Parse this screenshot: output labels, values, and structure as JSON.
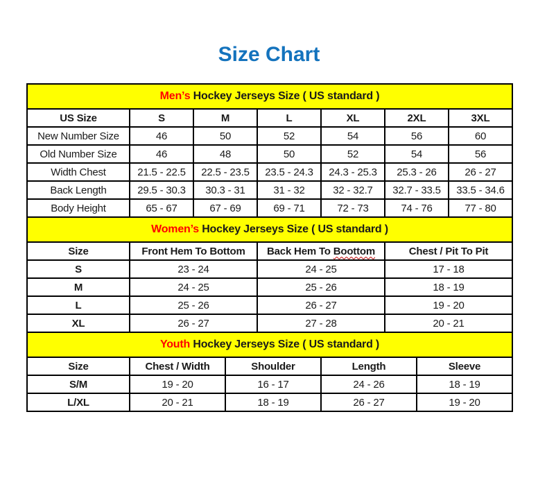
{
  "page": {
    "title": "Size Chart"
  },
  "colors": {
    "title_blue": "#1473BD",
    "band_yellow": "#FFFF00",
    "accent_red": "#FF0000",
    "text_black": "#1A1A1A",
    "border_black": "#000000",
    "background": "#FFFFFF"
  },
  "chart_data": [
    {
      "type": "table",
      "section": "men",
      "header": {
        "accent": "Men’s",
        "rest": "Hockey Jerseys Size ( US standard )"
      },
      "columns": [
        "US Size",
        "S",
        "M",
        "L",
        "XL",
        "2XL",
        "3XL"
      ],
      "rows": [
        [
          "New Number Size",
          "46",
          "50",
          "52",
          "54",
          "56",
          "60"
        ],
        [
          "Old Number Size",
          "46",
          "48",
          "50",
          "52",
          "54",
          "56"
        ],
        [
          "Width Chest",
          "21.5 - 22.5",
          "22.5 - 23.5",
          "23.5 - 24.3",
          "24.3 - 25.3",
          "25.3 - 26",
          "26 - 27"
        ],
        [
          "Back Length",
          "29.5 - 30.3",
          "30.3 - 31",
          "31 - 32",
          "32 - 32.7",
          "32.7 - 33.5",
          "33.5 - 34.6"
        ],
        [
          "Body Height",
          "65 - 67",
          "67 - 69",
          "69 - 71",
          "72 - 73",
          "74 - 76",
          "77 - 80"
        ]
      ]
    },
    {
      "type": "table",
      "section": "women",
      "header": {
        "accent": "Women’s",
        "rest": "Hockey Jerseys Size ( US standard )"
      },
      "columns": [
        "Size",
        "Front Hem To Bottom",
        "Back Hem To Boottom",
        "Chest / Pit To Pit"
      ],
      "misspelling": {
        "prefix": "Back Hem To ",
        "word": "Boottom"
      },
      "rows": [
        [
          "S",
          "23 - 24",
          "24 - 25",
          "17 - 18"
        ],
        [
          "M",
          "24 - 25",
          "25 - 26",
          "18 - 19"
        ],
        [
          "L",
          "25 - 26",
          "26 - 27",
          "19 - 20"
        ],
        [
          "XL",
          "26 - 27",
          "27 - 28",
          "20 - 21"
        ]
      ]
    },
    {
      "type": "table",
      "section": "youth",
      "header": {
        "accent": "Youth",
        "rest": "Hockey Jerseys Size ( US standard )"
      },
      "columns": [
        "Size",
        "Chest / Width",
        "Shoulder",
        "Length",
        "Sleeve"
      ],
      "rows": [
        [
          "S/M",
          "19 - 20",
          "16 - 17",
          "24 - 26",
          "18 - 19"
        ],
        [
          "L/XL",
          "20 - 21",
          "18 - 19",
          "26 - 27",
          "19 - 20"
        ]
      ]
    }
  ]
}
